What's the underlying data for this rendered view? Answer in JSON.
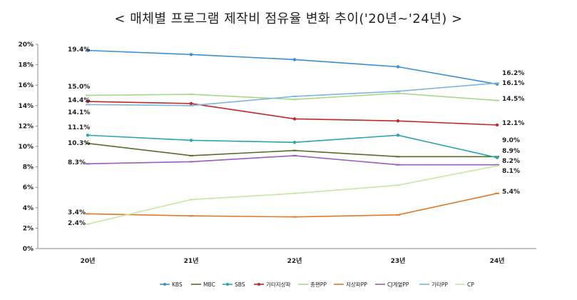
{
  "chart_data": {
    "type": "line",
    "title": "< 매체별 프로그램 제작비 점유율 변화 추이('20년~'24년) >",
    "xlabel": "",
    "ylabel": "",
    "categories": [
      "20년",
      "21년",
      "22년",
      "23년",
      "24년"
    ],
    "ylim": [
      0,
      20
    ],
    "yticks": [
      "0%",
      "2%",
      "4%",
      "6%",
      "8%",
      "10%",
      "12%",
      "14%",
      "16%",
      "18%",
      "20%"
    ],
    "grid": false,
    "legend_position": "bottom",
    "series": [
      {
        "name": "KBS",
        "color": "#3a8fd1",
        "marker": "dot",
        "values": [
          19.4,
          19.0,
          18.5,
          17.8,
          16.1
        ],
        "labels": [
          {
            "i": 0,
            "text": "19.4%"
          },
          {
            "i": 4,
            "text": "16.1%"
          }
        ]
      },
      {
        "name": "MBC",
        "color": "#5a6b2a",
        "marker": "dash",
        "values": [
          10.3,
          9.1,
          9.6,
          9.0,
          9.0
        ],
        "labels": [
          {
            "i": 0,
            "text": "10.3%"
          },
          {
            "i": 4,
            "text": "9.0%"
          }
        ]
      },
      {
        "name": "SBS",
        "color": "#2aa5ad",
        "marker": "dot",
        "values": [
          11.1,
          10.6,
          10.4,
          11.1,
          8.9
        ],
        "labels": [
          {
            "i": 0,
            "text": "11.1%"
          },
          {
            "i": 4,
            "text": "8.9%"
          }
        ]
      },
      {
        "name": "기타지상파",
        "color": "#c0282a",
        "marker": "dot",
        "values": [
          14.4,
          14.2,
          12.7,
          12.5,
          12.1
        ],
        "labels": [
          {
            "i": 0,
            "text": "14.4%"
          },
          {
            "i": 4,
            "text": "12.1%"
          }
        ]
      },
      {
        "name": "종편PP",
        "color": "#a8d98a",
        "marker": "dash",
        "values": [
          15.0,
          15.1,
          14.6,
          15.2,
          14.5
        ],
        "labels": [
          {
            "i": 0,
            "text": "15.0%"
          },
          {
            "i": 4,
            "text": "14.5%"
          }
        ]
      },
      {
        "name": "지상파PP",
        "color": "#e07a2a",
        "marker": "dash",
        "values": [
          3.4,
          3.2,
          3.1,
          3.3,
          5.4
        ],
        "labels": [
          {
            "i": 0,
            "text": "3.4%"
          },
          {
            "i": 4,
            "text": "5.4%"
          }
        ]
      },
      {
        "name": "CJ계열PP",
        "color": "#9a5cc0",
        "marker": "dash",
        "values": [
          8.3,
          8.5,
          9.1,
          8.2,
          8.2
        ],
        "labels": [
          {
            "i": 0,
            "text": "8.3%"
          },
          {
            "i": 4,
            "text": "8.2%"
          }
        ]
      },
      {
        "name": "기타PP",
        "color": "#7fb4e0",
        "marker": "dash",
        "values": [
          14.1,
          14.0,
          14.9,
          15.4,
          16.2
        ],
        "labels": [
          {
            "i": 0,
            "text": "14.1%"
          },
          {
            "i": 4,
            "text": "16.2%"
          }
        ]
      },
      {
        "name": "CP",
        "color": "#c8e6a4",
        "marker": "dash",
        "values": [
          2.4,
          4.8,
          5.4,
          6.2,
          8.1
        ],
        "labels": [
          {
            "i": 0,
            "text": "2.4%"
          },
          {
            "i": 4,
            "text": "8.1%"
          }
        ]
      }
    ]
  }
}
